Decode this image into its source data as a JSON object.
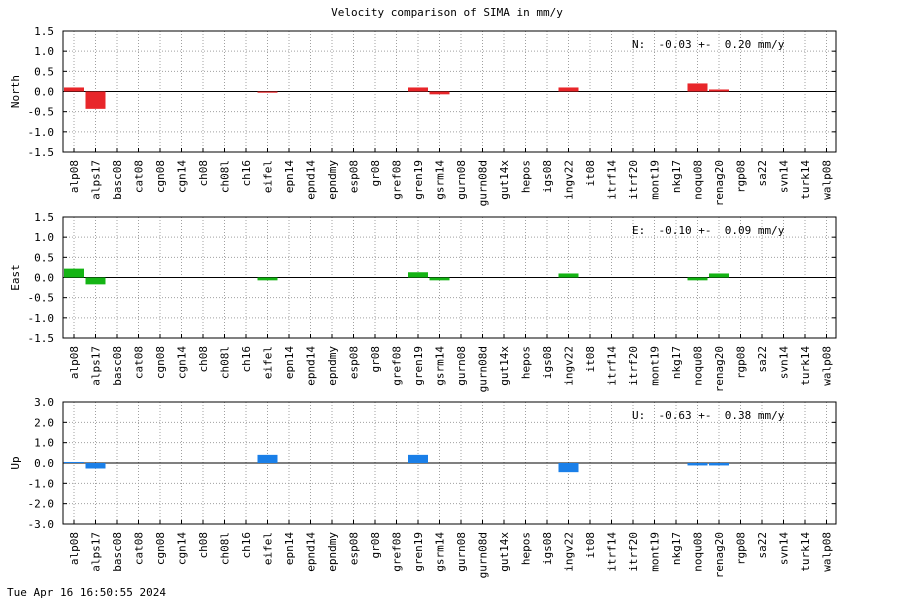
{
  "title": "Velocity comparison of SIMA in mm/y",
  "timestamp": "Tue Apr 16 16:50:55 2024",
  "chart_data": {
    "type": "bar",
    "title": "Velocity comparison of SIMA in mm/y",
    "categories": [
      "alp08",
      "alps17",
      "basc08",
      "cat08",
      "cgn08",
      "cgn14",
      "ch08",
      "ch08l",
      "ch16",
      "eifel",
      "epn14",
      "epnd14",
      "epndmy",
      "esp08",
      "gr08",
      "gref08",
      "gren19",
      "gsrm14",
      "gurn08",
      "gurn08d",
      "gut14x",
      "hepos",
      "igs08",
      "ingv22",
      "it08",
      "itrf14",
      "itrf20",
      "mont19",
      "nkg17",
      "noqu08",
      "renag20",
      "rgp08",
      "sa22",
      "svn14",
      "turk14",
      "walp08"
    ],
    "grid": true,
    "panels": [
      {
        "ylabel": "North",
        "color": "#e8262a",
        "ylim": [
          -1.5,
          1.5
        ],
        "ticks": [
          "1.5",
          "1.0",
          "0.5",
          "0.0",
          "-0.5",
          "-1.0",
          "-1.5"
        ],
        "tick_values": [
          1.5,
          1.0,
          0.5,
          0.0,
          -0.5,
          -1.0,
          -1.5
        ],
        "annotation": "N:  -0.03 +-  0.20 mm/y",
        "values": [
          0.1,
          -0.43,
          null,
          null,
          null,
          null,
          null,
          null,
          null,
          -0.03,
          null,
          null,
          null,
          null,
          null,
          null,
          0.1,
          -0.07,
          null,
          null,
          null,
          null,
          null,
          0.1,
          null,
          null,
          null,
          null,
          null,
          0.2,
          0.05,
          null,
          null,
          null,
          null,
          null
        ]
      },
      {
        "ylabel": "East",
        "color": "#14b414",
        "ylim": [
          -1.5,
          1.5
        ],
        "ticks": [
          "1.5",
          "1.0",
          "0.5",
          "0.0",
          "-0.5",
          "-1.0",
          "-1.5"
        ],
        "tick_values": [
          1.5,
          1.0,
          0.5,
          0.0,
          -0.5,
          -1.0,
          -1.5
        ],
        "annotation": "E:  -0.10 +-  0.09 mm/y",
        "values": [
          0.22,
          -0.17,
          null,
          null,
          null,
          null,
          null,
          null,
          null,
          -0.07,
          null,
          null,
          null,
          null,
          null,
          null,
          0.13,
          -0.07,
          null,
          null,
          null,
          null,
          null,
          0.1,
          null,
          null,
          null,
          null,
          null,
          -0.07,
          0.1,
          null,
          null,
          null,
          null,
          null
        ]
      },
      {
        "ylabel": "Up",
        "color": "#1a7fe8",
        "ylim": [
          -3.0,
          3.0
        ],
        "ticks": [
          "3.0",
          "2.0",
          "1.0",
          "0.0",
          "-1.0",
          "-2.0",
          "-3.0"
        ],
        "tick_values": [
          3.0,
          2.0,
          1.0,
          0.0,
          -1.0,
          -2.0,
          -3.0
        ],
        "annotation": "U:  -0.63 +-  0.38 mm/y",
        "values": [
          0.05,
          -0.27,
          null,
          null,
          null,
          null,
          null,
          null,
          null,
          0.4,
          null,
          null,
          null,
          null,
          null,
          null,
          0.4,
          null,
          null,
          null,
          null,
          null,
          null,
          -0.45,
          null,
          null,
          null,
          null,
          null,
          -0.12,
          -0.12,
          null,
          null,
          null,
          null,
          null
        ]
      }
    ]
  }
}
